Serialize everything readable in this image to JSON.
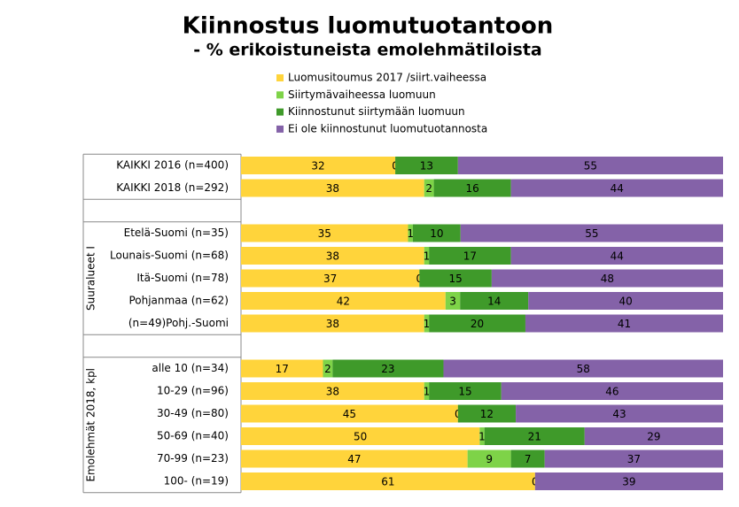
{
  "chart_data": {
    "type": "bar",
    "orientation": "horizontal",
    "stack": "percent",
    "title": "Kiinnostus luomutuotantoon",
    "subtitle": "- % erikoistuneista emolehmätiloista",
    "categories": [
      "KAIKKI 2016 (n=400)",
      "KAIKKI 2018 (n=292)",
      null,
      "Etelä-Suomi (n=35)",
      "Lounais-Suomi (n=68)",
      "Itä-Suomi (n=78)",
      "Pohjanmaa (n=62)",
      "(n=49)Pohj.-Suomi",
      null,
      "alle 10 (n=34)",
      "10-29 (n=96)",
      "30-49 (n=80)",
      "50-69 (n=40)",
      "70-99 (n=23)",
      "100- (n=19)"
    ],
    "group_labels": [
      "Suuralueet I",
      "Emolehmät 2018, kpl"
    ],
    "series": [
      {
        "name": "Luomusitoumus 2017 /siirt.vaiheessa",
        "color": "#ffd43b",
        "label_color": "#000000",
        "values": [
          32,
          38,
          null,
          35,
          38,
          37,
          42,
          38,
          null,
          17,
          38,
          45,
          50,
          47,
          61
        ]
      },
      {
        "name": "Siirtymävaiheessa luomuun",
        "color": "#7ed348",
        "label_color": "#000000",
        "values": [
          0,
          2,
          null,
          1,
          1,
          0,
          3,
          1,
          null,
          2,
          1,
          0,
          1,
          9,
          0
        ]
      },
      {
        "name": "Kiinnostunut siirtymään luomuun",
        "color": "#3f9a2a",
        "label_color": "#ffffff",
        "values": [
          13,
          16,
          null,
          10,
          17,
          15,
          14,
          20,
          null,
          23,
          15,
          12,
          21,
          7,
          null
        ]
      },
      {
        "name": "Ei ole kiinnostunut luomutuotannosta",
        "color": "#8462a8",
        "label_color": "#ffffff",
        "values": [
          55,
          44,
          null,
          55,
          44,
          48,
          40,
          41,
          null,
          58,
          46,
          43,
          29,
          37,
          39
        ]
      }
    ]
  }
}
